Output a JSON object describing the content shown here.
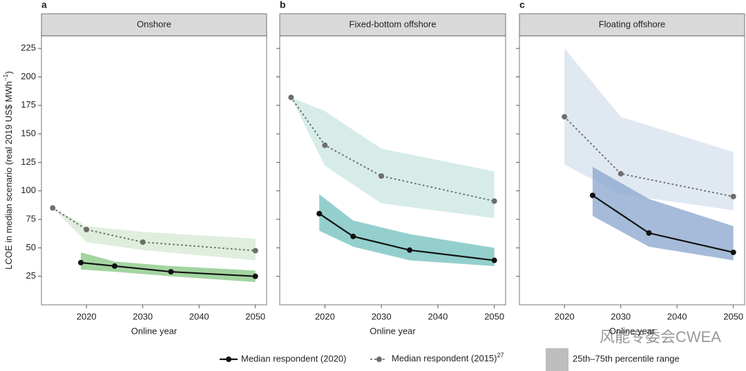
{
  "chart_data": [
    {
      "type": "line",
      "panel": "a",
      "title": "Onshore",
      "x_label": "Online year",
      "y_label": "LCOE in median scenario (real 2019 US$ MWh",
      "y_label_sup": "−1",
      "y_label_end": ")",
      "xlim": [
        2012,
        2052
      ],
      "xticks": [
        2020,
        2030,
        2040,
        2050
      ],
      "ylim": [
        0,
        236
      ],
      "yticks": [
        25,
        50,
        75,
        100,
        125,
        150,
        175,
        200,
        225
      ],
      "series": [
        {
          "name": "Median respondent (2020)",
          "color": "#111111",
          "band_color": "#8cc98a",
          "x": [
            2019,
            2025,
            2035,
            2050
          ],
          "values": [
            37,
            34,
            29,
            25
          ],
          "low": [
            31,
            29,
            25,
            20
          ],
          "high": [
            46,
            38,
            34,
            30
          ]
        },
        {
          "name": "Median respondent (2015)",
          "color": "#6d6d6d",
          "band_color": "#dcecd9",
          "x": [
            2014,
            2020,
            2030,
            2050
          ],
          "values": [
            85,
            66,
            55,
            47.5
          ],
          "low": [
            85,
            55,
            48,
            39
          ],
          "high": [
            85,
            69,
            64,
            58
          ]
        }
      ]
    },
    {
      "type": "line",
      "panel": "b",
      "title": "Fixed-bottom offshore",
      "x_label": "Online year",
      "xlim": [
        2012,
        2052
      ],
      "xticks": [
        2020,
        2030,
        2040,
        2050
      ],
      "ylim": [
        0,
        236
      ],
      "yticks": [
        25,
        50,
        75,
        100,
        125,
        150,
        175,
        200,
        225
      ],
      "series": [
        {
          "name": "Median respondent (2020)",
          "color": "#111111",
          "band_color": "#79c3c2",
          "x": [
            2019,
            2025,
            2035,
            2050
          ],
          "values": [
            80,
            60,
            48,
            39
          ],
          "low": [
            65,
            51,
            39,
            34
          ],
          "high": [
            97,
            74,
            62,
            50
          ]
        },
        {
          "name": "Median respondent (2015)",
          "color": "#6d6d6d",
          "band_color": "#d3eae6",
          "x": [
            2014,
            2020,
            2030,
            2050
          ],
          "values": [
            182,
            140,
            113,
            91
          ],
          "low": [
            182,
            122,
            89,
            76
          ],
          "high": [
            182,
            170,
            137,
            117
          ]
        }
      ]
    },
    {
      "type": "line",
      "panel": "c",
      "title": "Floating offshore",
      "x_label": "Online year",
      "xlim": [
        2012,
        2052
      ],
      "xticks": [
        2020,
        2030,
        2040,
        2050
      ],
      "ylim": [
        0,
        236
      ],
      "yticks": [
        25,
        50,
        75,
        100,
        125,
        150,
        175,
        200,
        225
      ],
      "series": [
        {
          "name": "Median respondent (2020)",
          "color": "#111111",
          "band_color": "#8eaad0",
          "x": [
            2025,
            2035,
            2050
          ],
          "values": [
            96,
            63,
            46
          ],
          "low": [
            78,
            51,
            39
          ],
          "high": [
            121,
            93,
            69
          ]
        },
        {
          "name": "Median respondent (2015)",
          "color": "#6d6d6d",
          "band_color": "#dde5f1",
          "x": [
            2020,
            2030,
            2050
          ],
          "values": [
            165,
            115,
            95
          ],
          "low": [
            123,
            97,
            83
          ],
          "high": [
            225,
            165,
            134
          ]
        }
      ]
    }
  ],
  "legend": {
    "superscript": "27",
    "band_label": "25th–75th percentile range",
    "band_color": "#bdbdbd"
  },
  "watermark": "风能专委会CWEA"
}
